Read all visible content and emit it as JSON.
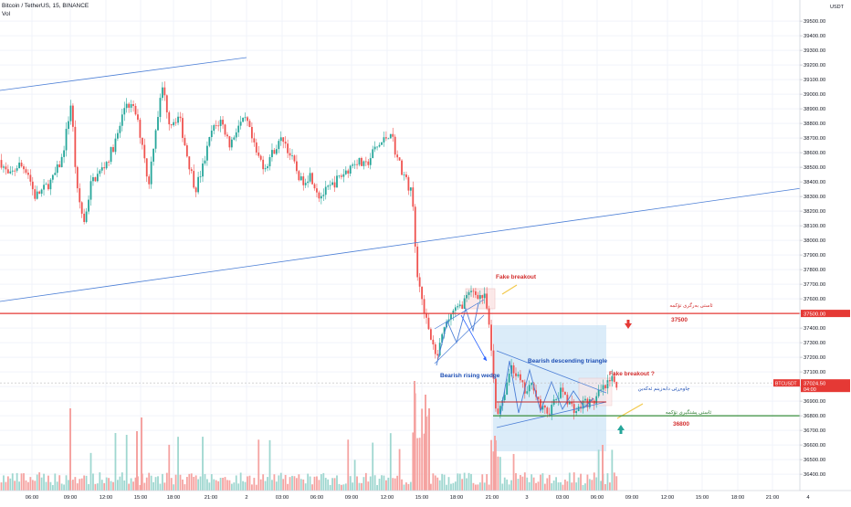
{
  "header": {
    "symbol_line": "Bitcoin / TetherUS, 15, BINANCE",
    "vol_label": "Vol"
  },
  "price_axis": {
    "currency": "USDT",
    "tick_labels": [
      "39500.00",
      "39400.00",
      "39300.00",
      "39200.00",
      "39100.00",
      "39000.00",
      "38900.00",
      "38800.00",
      "38700.00",
      "38600.00",
      "38500.00",
      "38400.00",
      "38300.00",
      "38200.00",
      "38100.00",
      "38000.00",
      "37900.00",
      "37800.00",
      "37700.00",
      "37600.00",
      "37500.00",
      "37400.00",
      "37300.00",
      "37200.00",
      "37100.00",
      "37000.00",
      "36900.00",
      "36800.00",
      "36700.00",
      "36600.00",
      "36500.00",
      "36400.00"
    ],
    "level_badge": "37500.00",
    "last_badge_symbol": "BTCUSDT",
    "last_badge_price": "37024.50",
    "last_badge_time": "04:00"
  },
  "time_axis": {
    "tick_labels": [
      "06:00",
      "09:00",
      "12:00",
      "15:00",
      "18:00",
      "21:00",
      "2",
      "03:00",
      "06:00",
      "09:00",
      "12:00",
      "15:00",
      "18:00",
      "21:00",
      "3",
      "03:00",
      "06:00",
      "09:00",
      "12:00",
      "15:00",
      "18:00",
      "21:00",
      "4"
    ]
  },
  "annotations": {
    "fake_breakout_1": "Fake breakout",
    "fake_breakout_2": "Fake breakout ?",
    "bearish_wedge": "Bearish rising wedge",
    "bearish_triangle": "Bearish descending triangle",
    "resistance_text": "ئاستی بەرگری تۆکمە",
    "resistance_value": "37500",
    "support_text": "ئاستی پشتگیری تۆکمە",
    "support_value": "36800",
    "close_text": "چاوەڕێی دابەزینم ئەکەین"
  },
  "colors": {
    "up": "#26a69a",
    "down": "#ef5350",
    "vol_up": "#9fd7d0",
    "vol_down": "#f5a3a1",
    "resistance": "#e53935",
    "support": "#388e3c",
    "trendline": "#4c7fd6",
    "triangle_box": "#cfe6f7",
    "axis_text": "#131722"
  },
  "chart_data": {
    "type": "candlestick",
    "title": "Bitcoin / TetherUS, 15, BINANCE",
    "ylim": [
      36360,
      39560
    ],
    "y_unit": "USDT",
    "x_ticks": [
      "06:00",
      "09:00",
      "12:00",
      "15:00",
      "18:00",
      "21:00",
      "2",
      "03:00",
      "06:00",
      "09:00",
      "12:00",
      "15:00",
      "18:00",
      "21:00",
      "3",
      "03:00",
      "06:00",
      "09:00",
      "12:00",
      "15:00",
      "18:00",
      "21:00",
      "4"
    ],
    "key_levels": [
      {
        "label": "37500",
        "value": 37500,
        "role": "resistance"
      },
      {
        "label": "36800",
        "value": 36800,
        "role": "support"
      }
    ],
    "last_price": 37024.5,
    "price_path": [
      [
        0,
        38550
      ],
      [
        10,
        38430
      ],
      [
        20,
        38520
      ],
      [
        30,
        38480
      ],
      [
        38,
        38300
      ],
      [
        48,
        38350
      ],
      [
        58,
        38420
      ],
      [
        68,
        38560
      ],
      [
        78,
        38950
      ],
      [
        84,
        38350
      ],
      [
        92,
        38120
      ],
      [
        100,
        38400
      ],
      [
        110,
        38470
      ],
      [
        118,
        38550
      ],
      [
        128,
        38700
      ],
      [
        138,
        38950
      ],
      [
        148,
        38880
      ],
      [
        158,
        38600
      ],
      [
        162,
        38350
      ],
      [
        170,
        38750
      ],
      [
        178,
        39050
      ],
      [
        186,
        38800
      ],
      [
        196,
        38850
      ],
      [
        206,
        38550
      ],
      [
        214,
        38350
      ],
      [
        222,
        38500
      ],
      [
        232,
        38750
      ],
      [
        242,
        38820
      ],
      [
        252,
        38650
      ],
      [
        260,
        38780
      ],
      [
        270,
        38820
      ],
      [
        280,
        38600
      ],
      [
        290,
        38500
      ],
      [
        300,
        38620
      ],
      [
        310,
        38700
      ],
      [
        320,
        38550
      ],
      [
        330,
        38400
      ],
      [
        340,
        38450
      ],
      [
        350,
        38300
      ],
      [
        360,
        38350
      ],
      [
        370,
        38420
      ],
      [
        380,
        38480
      ],
      [
        390,
        38550
      ],
      [
        400,
        38500
      ],
      [
        410,
        38620
      ],
      [
        420,
        38680
      ],
      [
        428,
        38750
      ],
      [
        434,
        38580
      ],
      [
        442,
        38450
      ],
      [
        452,
        38300
      ],
      [
        456,
        37800
      ],
      [
        462,
        37620
      ],
      [
        470,
        37350
      ],
      [
        478,
        37180
      ],
      [
        486,
        37380
      ],
      [
        494,
        37500
      ],
      [
        502,
        37530
      ],
      [
        510,
        37600
      ],
      [
        518,
        37650
      ],
      [
        526,
        37620
      ],
      [
        532,
        37600
      ],
      [
        538,
        37250
      ],
      [
        544,
        36780
      ],
      [
        552,
        36950
      ],
      [
        560,
        37150
      ],
      [
        568,
        37050
      ],
      [
        576,
        36950
      ],
      [
        584,
        37020
      ],
      [
        592,
        36850
      ],
      [
        600,
        36820
      ],
      [
        608,
        36900
      ],
      [
        616,
        36980
      ],
      [
        624,
        36880
      ],
      [
        632,
        36830
      ],
      [
        640,
        36900
      ],
      [
        648,
        36880
      ],
      [
        656,
        36950
      ],
      [
        664,
        37000
      ],
      [
        670,
        37040
      ],
      [
        676,
        37024
      ]
    ]
  }
}
